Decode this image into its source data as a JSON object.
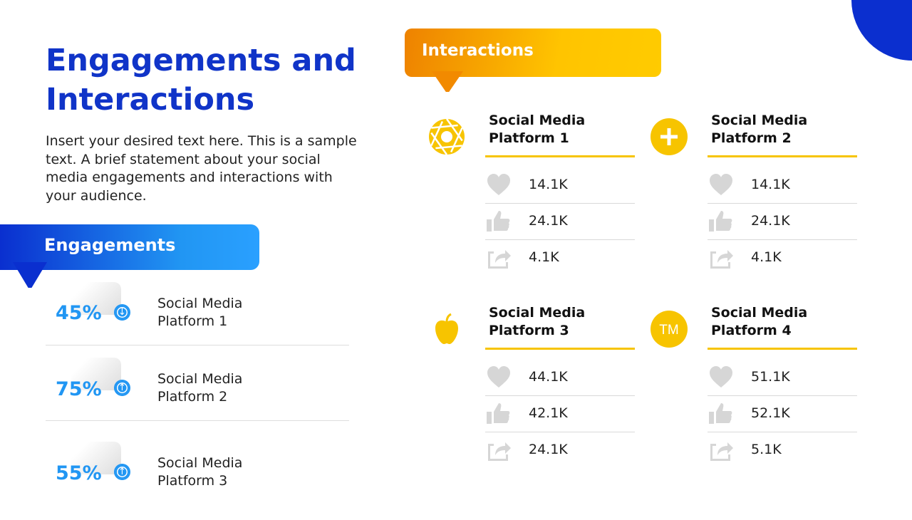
{
  "title": "Engagements and Interactions",
  "description": "Insert your desired text here. This is a sample text. A brief statement about your social media engagements and interactions with your audience.",
  "colors": {
    "title": "#1034c8",
    "engagement_blue": "#2196f3",
    "interaction_yellow": "#f7c400",
    "interaction_orange": "#ee8200"
  },
  "engagements": {
    "heading": "Engagements",
    "items": [
      {
        "percent": "45%",
        "trend": "down",
        "label_line1": "Social Media",
        "label_line2": "Platform 1"
      },
      {
        "percent": "75%",
        "trend": "up",
        "label_line1": "Social Media",
        "label_line2": "Platform 2"
      },
      {
        "percent": "55%",
        "trend": "up",
        "label_line1": "Social Media",
        "label_line2": "Platform 3"
      }
    ]
  },
  "interactions": {
    "heading": "Interactions",
    "cards": [
      {
        "icon": "aperture-icon",
        "title_line1": "Social Media",
        "title_line2": "Platform 1",
        "likes": "14.1K",
        "thumbs": "24.1K",
        "shares": "4.1K"
      },
      {
        "icon": "plus-icon",
        "title_line1": "Social Media",
        "title_line2": "Platform 2",
        "likes": "14.1K",
        "thumbs": "24.1K",
        "shares": "4.1K"
      },
      {
        "icon": "apple-icon",
        "title_line1": "Social Media",
        "title_line2": "Platform 3",
        "likes": "44.1K",
        "thumbs": "42.1K",
        "shares": "24.1K"
      },
      {
        "icon": "trademark-icon",
        "icon_text": "TM",
        "title_line1": "Social Media",
        "title_line2": "Platform 4",
        "likes": "51.1K",
        "thumbs": "52.1K",
        "shares": "5.1K"
      }
    ]
  }
}
